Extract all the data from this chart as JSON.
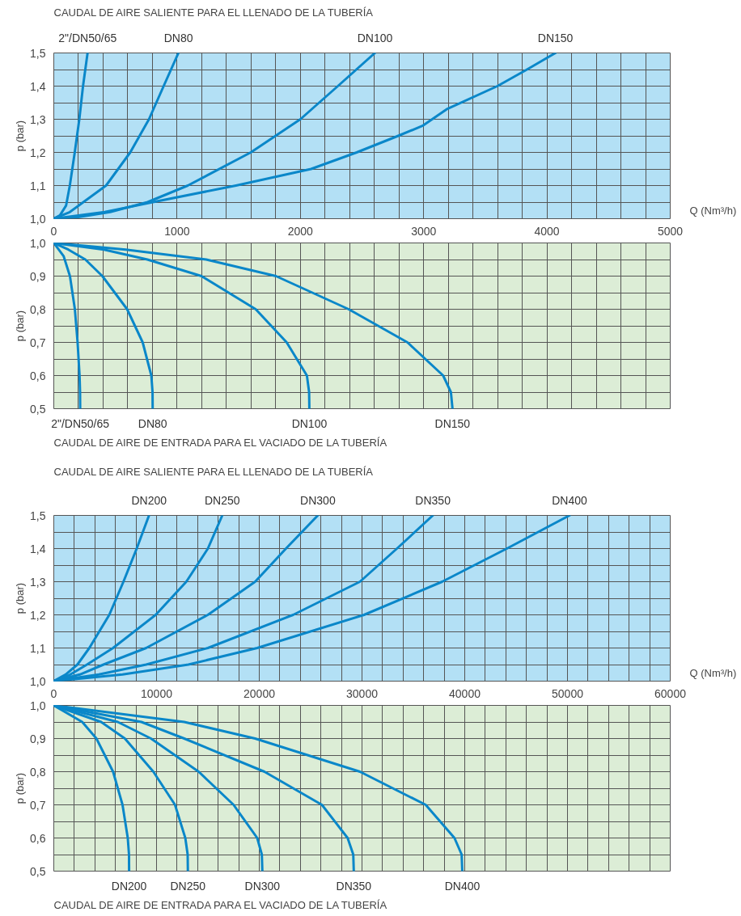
{
  "chart_data": [
    {
      "type": "line",
      "title": "CAUDAL DE AIRE SALIENTE PARA EL LLENADO DE LA TUBERÍA",
      "xlabel": "Q (Nm³/h)",
      "ylabel": "p (bar)",
      "xlim": [
        0,
        5000
      ],
      "ylim": [
        1.0,
        1.5
      ],
      "xticks": [
        0,
        1000,
        2000,
        3000,
        4000,
        5000
      ],
      "yticks": [
        {
          "value": 1.0,
          "label": "1,0"
        },
        {
          "value": 1.1,
          "label": "1,1"
        },
        {
          "value": 1.2,
          "label": "1,2"
        },
        {
          "value": 1.3,
          "label": "1,3"
        },
        {
          "value": 1.4,
          "label": "1,4"
        },
        {
          "value": 1.5,
          "label": "1,5"
        }
      ],
      "grid": true,
      "series": [
        {
          "name": "2\"/DN50/65",
          "color": "#0a87c9",
          "x": [
            0,
            50,
            100,
            130,
            170,
            207,
            237,
            274
          ],
          "values": [
            1.0,
            1.01,
            1.04,
            1.1,
            1.2,
            1.3,
            1.4,
            1.5
          ]
        },
        {
          "name": "DN80",
          "color": "#0a87c9",
          "x": [
            0,
            130,
            240,
            424,
            620,
            772,
            891,
            1011
          ],
          "values": [
            1.0,
            1.02,
            1.05,
            1.1,
            1.2,
            1.3,
            1.4,
            1.5
          ]
        },
        {
          "name": "DN100",
          "color": "#0a87c9",
          "x": [
            0,
            200,
            457,
            761,
            1087,
            1598,
            2000,
            2304,
            2605
          ],
          "values": [
            1.0,
            1.005,
            1.02,
            1.05,
            1.1,
            1.2,
            1.3,
            1.4,
            1.5
          ]
        },
        {
          "name": "DN150",
          "color": "#0a87c9",
          "x": [
            0,
            413,
            804,
            1478,
            2087,
            2457,
            2794,
            2990,
            3186,
            3598,
            3838,
            4069
          ],
          "values": [
            1.0,
            1.02,
            1.05,
            1.1,
            1.15,
            1.2,
            1.25,
            1.28,
            1.33,
            1.4,
            1.45,
            1.5
          ]
        }
      ]
    },
    {
      "type": "line",
      "ylabel": "p (bar)",
      "xlim": [
        0,
        5000
      ],
      "ylim": [
        0.5,
        1.0
      ],
      "xticks": [
        0,
        1000,
        2000,
        3000,
        4000,
        5000
      ],
      "yticks": [
        {
          "value": 0.5,
          "label": "0,5"
        },
        {
          "value": 0.6,
          "label": "0,6"
        },
        {
          "value": 0.7,
          "label": "0,7"
        },
        {
          "value": 0.8,
          "label": "0,8"
        },
        {
          "value": 0.9,
          "label": "0,9"
        },
        {
          "value": 1.0,
          "label": "1,0"
        }
      ],
      "grid": true,
      "tick_labels": "y",
      "annotations": [
        "CAUDAL DE AIRE DE ENTRADA PARA EL VACIADO DE LA TUBERÍA"
      ],
      "series": [
        {
          "name": "2\"/DN50/65",
          "color": "#0a87c9",
          "x": [
            0,
            80,
            131,
            171,
            193,
            209,
            213,
            214
          ],
          "values": [
            1.0,
            0.96,
            0.9,
            0.8,
            0.7,
            0.6,
            0.55,
            0.5
          ]
        },
        {
          "name": "DN80",
          "color": "#0a87c9",
          "x": [
            0,
            118,
            256,
            394,
            595,
            721,
            791,
            801,
            802
          ],
          "values": [
            1.0,
            0.98,
            0.95,
            0.9,
            0.8,
            0.7,
            0.6,
            0.55,
            0.5
          ]
        },
        {
          "name": "DN100",
          "color": "#0a87c9",
          "x": [
            0,
            407,
            759,
            1198,
            1638,
            1889,
            2053,
            2071,
            2073
          ],
          "values": [
            1.0,
            0.98,
            0.95,
            0.9,
            0.8,
            0.7,
            0.6,
            0.55,
            0.5
          ]
        },
        {
          "name": "DN150",
          "color": "#0a87c9",
          "x": [
            0,
            583,
            1236,
            1802,
            2392,
            2869,
            3158,
            3221,
            3234
          ],
          "values": [
            1.0,
            0.98,
            0.95,
            0.9,
            0.8,
            0.7,
            0.6,
            0.55,
            0.5
          ]
        }
      ]
    },
    {
      "type": "line",
      "title": "CAUDAL DE AIRE SALIENTE PARA EL LLENADO DE LA TUBERÍA",
      "xlabel": "Q (Nm³/h)",
      "ylabel": "p (bar)",
      "xlim": [
        0,
        60000
      ],
      "ylim": [
        1.0,
        1.5
      ],
      "xticks": [
        0,
        10000,
        20000,
        30000,
        40000,
        50000,
        60000
      ],
      "yticks": [
        {
          "value": 1.0,
          "label": "1,0"
        },
        {
          "value": 1.1,
          "label": "1,1"
        },
        {
          "value": 1.2,
          "label": "1,2"
        },
        {
          "value": 1.3,
          "label": "1,3"
        },
        {
          "value": 1.4,
          "label": "1,4"
        },
        {
          "value": 1.5,
          "label": "1,5"
        }
      ],
      "grid": true,
      "series": [
        {
          "name": "DN200",
          "color": "#0a87c9",
          "x": [
            0,
            1150,
            2300,
            3460,
            5400,
            6780,
            8070,
            9270
          ],
          "values": [
            1.0,
            1.02,
            1.05,
            1.1,
            1.2,
            1.3,
            1.4,
            1.5
          ]
        },
        {
          "name": "DN250",
          "color": "#0a87c9",
          "x": [
            0,
            1610,
            3230,
            5770,
            9920,
            12900,
            15000,
            16400
          ],
          "values": [
            1.0,
            1.02,
            1.05,
            1.1,
            1.2,
            1.3,
            1.4,
            1.5
          ]
        },
        {
          "name": "DN300",
          "color": "#0a87c9",
          "x": [
            0,
            2540,
            4840,
            8990,
            15000,
            19600,
            22600,
            25700
          ],
          "values": [
            1.0,
            1.02,
            1.05,
            1.1,
            1.2,
            1.3,
            1.4,
            1.5
          ]
        },
        {
          "name": "DN350",
          "color": "#0a87c9",
          "x": [
            0,
            4380,
            8990,
            15000,
            23300,
            29800,
            33400,
            36900
          ],
          "values": [
            1.0,
            1.02,
            1.05,
            1.1,
            1.2,
            1.3,
            1.4,
            1.5
          ]
        },
        {
          "name": "DN400",
          "color": "#0a87c9",
          "x": [
            0,
            6690,
            13100,
            19800,
            30200,
            37800,
            44100,
            50200
          ],
          "values": [
            1.0,
            1.02,
            1.05,
            1.1,
            1.2,
            1.3,
            1.4,
            1.5
          ]
        }
      ]
    },
    {
      "type": "line",
      "ylabel": "p (bar)",
      "xlim": [
        0,
        60000
      ],
      "ylim": [
        0.5,
        1.0
      ],
      "xticks": [
        0,
        10000,
        20000,
        30000,
        40000,
        50000,
        60000
      ],
      "yticks": [
        {
          "value": 0.5,
          "label": "0,5"
        },
        {
          "value": 0.6,
          "label": "0,6"
        },
        {
          "value": 0.7,
          "label": "0,7"
        },
        {
          "value": 0.8,
          "label": "0,8"
        },
        {
          "value": 0.9,
          "label": "0,9"
        },
        {
          "value": 1.0,
          "label": "1,0"
        }
      ],
      "grid": true,
      "tick_labels": "y",
      "annotations": [
        "CAUDAL DE AIRE DE ENTRADA PARA EL VACIADO DE LA TUBERÍA"
      ],
      "series": [
        {
          "name": "DN200",
          "color": "#0a87c9",
          "x": [
            0,
            2770,
            4150,
            5770,
            6690,
            7200,
            7320,
            7330
          ],
          "values": [
            1.0,
            0.95,
            0.9,
            0.8,
            0.7,
            0.6,
            0.55,
            0.5
          ]
        },
        {
          "name": "DN250",
          "color": "#0a87c9",
          "x": [
            0,
            4610,
            6920,
            9690,
            11800,
            12800,
            13030,
            13050
          ],
          "values": [
            1.0,
            0.95,
            0.9,
            0.8,
            0.7,
            0.6,
            0.55,
            0.5
          ]
        },
        {
          "name": "DN300",
          "color": "#0a87c9",
          "x": [
            0,
            6230,
            9460,
            14100,
            17500,
            19800,
            20250,
            20300
          ],
          "values": [
            1.0,
            0.95,
            0.9,
            0.8,
            0.7,
            0.6,
            0.55,
            0.5
          ]
        },
        {
          "name": "DN350",
          "color": "#0a87c9",
          "x": [
            0,
            8530,
            12700,
            20500,
            26100,
            28600,
            29150,
            29200
          ],
          "values": [
            1.0,
            0.95,
            0.9,
            0.8,
            0.7,
            0.6,
            0.55,
            0.5
          ]
        },
        {
          "name": "DN400",
          "color": "#0a87c9",
          "x": [
            0,
            12700,
            19600,
            29800,
            36200,
            39000,
            39700,
            39760
          ],
          "values": [
            1.0,
            0.95,
            0.9,
            0.8,
            0.7,
            0.6,
            0.55,
            0.5
          ]
        }
      ]
    }
  ]
}
